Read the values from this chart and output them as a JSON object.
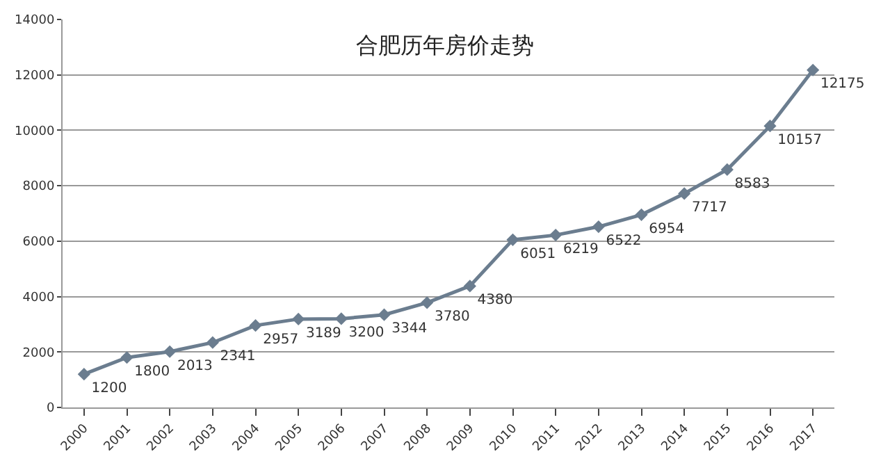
{
  "chart_data": {
    "type": "line",
    "title": "合肥历年房价走势",
    "categories": [
      "2000",
      "2001",
      "2002",
      "2003",
      "2004",
      "2005",
      "2006",
      "2007",
      "2008",
      "2009",
      "2010",
      "2011",
      "2012",
      "2013",
      "2014",
      "2015",
      "2016",
      "2017"
    ],
    "series": [
      {
        "color": "#6b7d8f",
        "values": [
          1200,
          1800,
          2013,
          2341,
          2957,
          3189,
          3200,
          3344,
          3780,
          4380,
          6051,
          6219,
          6522,
          6954,
          7717,
          8583,
          10157,
          12175
        ]
      }
    ],
    "ylim": [
      0,
      14000
    ],
    "yticks": [
      0,
      2000,
      4000,
      6000,
      8000,
      10000,
      12000,
      14000
    ],
    "grid": "y",
    "marker": "diamond",
    "line_style": "solid",
    "data_labels": true
  }
}
